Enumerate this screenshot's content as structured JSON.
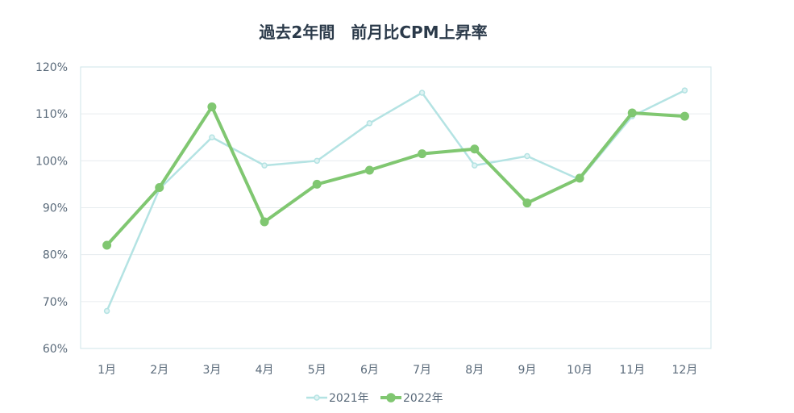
{
  "chart_data": {
    "type": "line",
    "title": "過去2年間　前月比CPM上昇率",
    "categories": [
      "1月",
      "2月",
      "3月",
      "4月",
      "5月",
      "6月",
      "7月",
      "8月",
      "9月",
      "10月",
      "11月",
      "12月"
    ],
    "yticks": [
      "60%",
      "70%",
      "80%",
      "90%",
      "100%",
      "110%",
      "120%"
    ],
    "ylim": [
      60,
      120
    ],
    "grid": true,
    "legend_position": "bottom",
    "series": [
      {
        "name": "2021年",
        "color": "#b4e3e3",
        "values": [
          68,
          94,
          105,
          99,
          100,
          108,
          114.5,
          99,
          101,
          96,
          109.5,
          115
        ]
      },
      {
        "name": "2022年",
        "color": "#80c771",
        "values": [
          82,
          94.3,
          111.5,
          87,
          95,
          98,
          101.5,
          102.5,
          91,
          96.3,
          110.2,
          109.5
        ]
      }
    ]
  }
}
